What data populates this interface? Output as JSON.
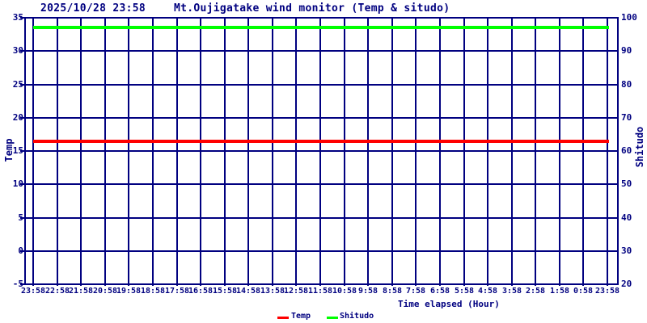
{
  "header": {
    "datetime": "2025/10/28 23:58",
    "title": "Mt.Oujigatake wind monitor (Temp & situdo)"
  },
  "colors": {
    "axis_and_text": "#000080",
    "background": "#ffffff",
    "temp_line": "#ff0000",
    "shitudo_line": "#00ff00"
  },
  "chart_data": {
    "type": "line",
    "title": "Mt.Oujigatake wind monitor (Temp & situdo)",
    "datetime": "2025/10/28 23:58",
    "x_axis": {
      "label": "Time elapsed (Hour)",
      "ticks": [
        "23:58",
        "22:58",
        "21:58",
        "20:58",
        "19:58",
        "18:58",
        "17:58",
        "16:58",
        "15:58",
        "14:58",
        "13:58",
        "12:58",
        "11:58",
        "10:58",
        "9:58",
        "8:58",
        "7:58",
        "6:58",
        "5:58",
        "4:58",
        "3:58",
        "2:58",
        "1:58",
        "0:58",
        "23:58"
      ]
    },
    "left_axis": {
      "label": "Temp",
      "min": -5,
      "max": 35,
      "ticks": [
        35,
        30,
        25,
        20,
        15,
        10,
        5,
        0,
        -5
      ]
    },
    "right_axis": {
      "label": "Shitudo",
      "min": 20,
      "max": 100,
      "ticks": [
        100,
        90,
        80,
        70,
        60,
        50,
        40,
        30,
        20
      ]
    },
    "grid": true,
    "legend_position": "bottom",
    "series": [
      {
        "name": "Temp",
        "color": "#ff0000",
        "axis": "left",
        "values": [
          16.4,
          16.4,
          16.4,
          16.4,
          16.4,
          16.4,
          16.4,
          16.4,
          16.4,
          16.4,
          16.4,
          16.4,
          16.4,
          16.4,
          16.4,
          16.4,
          16.4,
          16.4,
          16.4,
          16.4,
          16.4,
          16.4,
          16.4,
          16.4,
          16.4
        ]
      },
      {
        "name": "Shitudo",
        "color": "#00ff00",
        "axis": "right",
        "values": [
          97,
          97,
          97,
          97,
          97,
          97,
          97,
          97,
          97,
          97,
          97,
          97,
          97,
          97,
          97,
          97,
          97,
          97,
          97,
          97,
          97,
          97,
          97,
          97,
          97
        ]
      }
    ],
    "legend": [
      {
        "label": "Temp",
        "color": "#ff0000"
      },
      {
        "label": "Shitudo",
        "color": "#00ff00"
      }
    ]
  }
}
